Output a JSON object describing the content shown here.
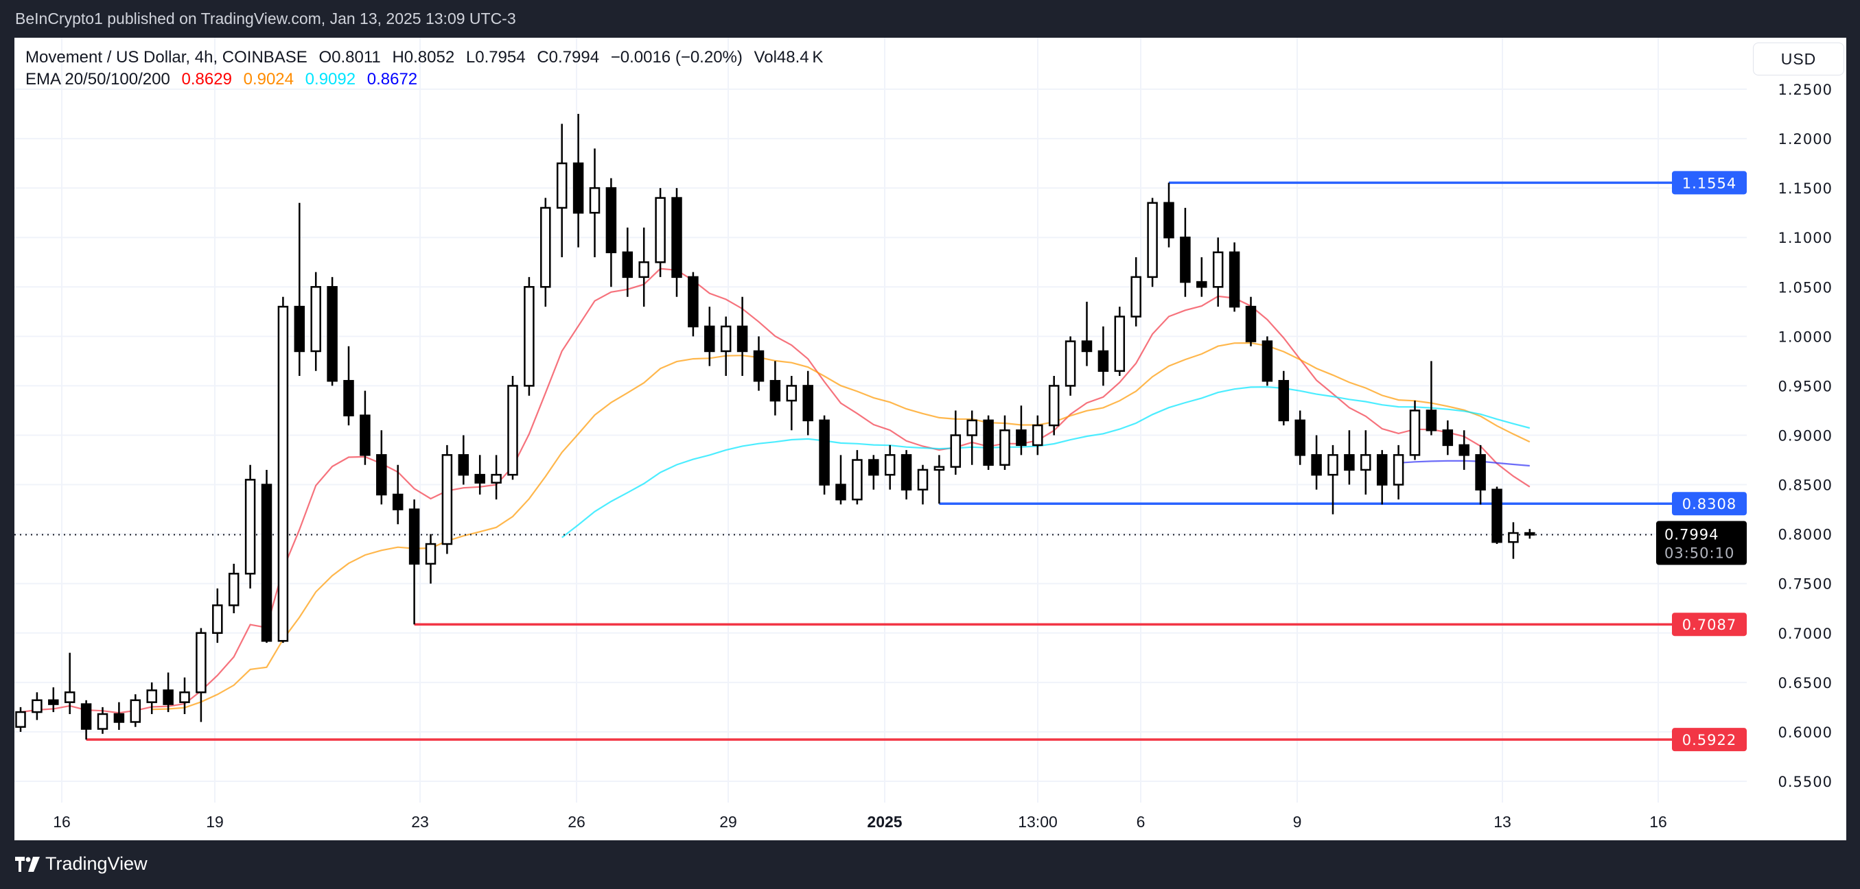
{
  "publish_line": "BeInCrypto1 published on TradingView.com, Jan 13, 2025 13:09 UTC-3",
  "legend": {
    "symbol": "Movement / US Dollar, 4h, COINBASE",
    "open": "O0.8011",
    "high": "H0.8052",
    "low": "L0.7954",
    "close": "C0.7994",
    "change": "−0.0016 (−0.20%)",
    "volume": "Vol48.4 K",
    "ema_label": "EMA 20/50/100/200",
    "ema20": "0.8629",
    "ema50": "0.9024",
    "ema100": "0.9092",
    "ema200": "0.8672"
  },
  "currency_button": "USD",
  "footer": {
    "logo_text": "TradingView"
  },
  "colors": {
    "ema20": "#f23645",
    "ema50": "#ff9800",
    "ema100": "#00e5ff",
    "ema200": "#2e2ef5",
    "support_resistance_blue": "#2962ff",
    "support_red": "#f23645",
    "background": "#1e222d"
  },
  "chart_data": {
    "type": "candlestick",
    "ylim": [
      0.53,
      1.265
    ],
    "grid": true,
    "y_ticks": [
      "1.2500",
      "1.2000",
      "1.1500",
      "1.1000",
      "1.0500",
      "1.0000",
      "0.9500",
      "0.9000",
      "0.8500",
      "0.8000",
      "0.7500",
      "0.7000",
      "0.6500",
      "0.6000",
      "0.5500"
    ],
    "x_ticks": [
      {
        "label": "16",
        "bold": false
      },
      {
        "label": "19",
        "bold": false
      },
      {
        "label": "23",
        "bold": false
      },
      {
        "label": "26",
        "bold": false
      },
      {
        "label": "29",
        "bold": false
      },
      {
        "label": "2025",
        "bold": true
      },
      {
        "label": "13:00",
        "bold": false
      },
      {
        "label": "6",
        "bold": false
      },
      {
        "label": "9",
        "bold": false
      },
      {
        "label": "13",
        "bold": false
      },
      {
        "label": "16",
        "bold": false
      }
    ],
    "candles": [
      [
        0.605,
        0.625,
        0.6,
        0.62
      ],
      [
        0.62,
        0.64,
        0.612,
        0.632
      ],
      [
        0.632,
        0.645,
        0.62,
        0.628
      ],
      [
        0.63,
        0.68,
        0.618,
        0.64
      ],
      [
        0.628,
        0.632,
        0.5922,
        0.603
      ],
      [
        0.603,
        0.625,
        0.598,
        0.618
      ],
      [
        0.618,
        0.63,
        0.602,
        0.61
      ],
      [
        0.61,
        0.638,
        0.605,
        0.632
      ],
      [
        0.63,
        0.65,
        0.618,
        0.642
      ],
      [
        0.642,
        0.66,
        0.62,
        0.628
      ],
      [
        0.63,
        0.655,
        0.618,
        0.64
      ],
      [
        0.64,
        0.705,
        0.61,
        0.7
      ],
      [
        0.7,
        0.745,
        0.69,
        0.728
      ],
      [
        0.728,
        0.77,
        0.72,
        0.76
      ],
      [
        0.76,
        0.87,
        0.745,
        0.855
      ],
      [
        0.85,
        0.865,
        0.69,
        0.692
      ],
      [
        0.692,
        1.04,
        0.69,
        1.03
      ],
      [
        1.03,
        1.135,
        0.96,
        0.985
      ],
      [
        0.985,
        1.065,
        0.965,
        1.05
      ],
      [
        1.05,
        1.06,
        0.95,
        0.955
      ],
      [
        0.955,
        0.99,
        0.91,
        0.92
      ],
      [
        0.92,
        0.945,
        0.87,
        0.88
      ],
      [
        0.88,
        0.905,
        0.83,
        0.84
      ],
      [
        0.84,
        0.87,
        0.81,
        0.825
      ],
      [
        0.825,
        0.835,
        0.7087,
        0.77
      ],
      [
        0.77,
        0.8,
        0.75,
        0.79
      ],
      [
        0.79,
        0.89,
        0.78,
        0.88
      ],
      [
        0.88,
        0.9,
        0.85,
        0.86
      ],
      [
        0.86,
        0.88,
        0.84,
        0.852
      ],
      [
        0.852,
        0.88,
        0.835,
        0.86
      ],
      [
        0.86,
        0.96,
        0.855,
        0.95
      ],
      [
        0.95,
        1.06,
        0.94,
        1.05
      ],
      [
        1.05,
        1.14,
        1.03,
        1.13
      ],
      [
        1.13,
        1.215,
        1.08,
        1.175
      ],
      [
        1.175,
        1.225,
        1.09,
        1.125
      ],
      [
        1.125,
        1.19,
        1.08,
        1.15
      ],
      [
        1.15,
        1.16,
        1.05,
        1.085
      ],
      [
        1.085,
        1.11,
        1.04,
        1.06
      ],
      [
        1.06,
        1.11,
        1.03,
        1.075
      ],
      [
        1.075,
        1.15,
        1.06,
        1.14
      ],
      [
        1.14,
        1.15,
        1.04,
        1.06
      ],
      [
        1.06,
        1.065,
        1.0,
        1.01
      ],
      [
        1.01,
        1.03,
        0.97,
        0.985
      ],
      [
        0.985,
        1.02,
        0.96,
        1.01
      ],
      [
        1.01,
        1.04,
        0.96,
        0.985
      ],
      [
        0.985,
        1.0,
        0.945,
        0.955
      ],
      [
        0.955,
        0.975,
        0.92,
        0.935
      ],
      [
        0.935,
        0.96,
        0.905,
        0.95
      ],
      [
        0.95,
        0.965,
        0.9,
        0.915
      ],
      [
        0.915,
        0.92,
        0.84,
        0.85
      ],
      [
        0.85,
        0.88,
        0.83,
        0.835
      ],
      [
        0.835,
        0.885,
        0.83,
        0.875
      ],
      [
        0.875,
        0.88,
        0.845,
        0.86
      ],
      [
        0.86,
        0.89,
        0.845,
        0.88
      ],
      [
        0.88,
        0.885,
        0.835,
        0.845
      ],
      [
        0.845,
        0.87,
        0.83,
        0.865
      ],
      [
        0.865,
        0.88,
        0.8308,
        0.868
      ],
      [
        0.868,
        0.925,
        0.86,
        0.9
      ],
      [
        0.9,
        0.925,
        0.87,
        0.915
      ],
      [
        0.915,
        0.92,
        0.865,
        0.87
      ],
      [
        0.87,
        0.92,
        0.865,
        0.905
      ],
      [
        0.905,
        0.93,
        0.88,
        0.89
      ],
      [
        0.89,
        0.92,
        0.88,
        0.91
      ],
      [
        0.91,
        0.96,
        0.9,
        0.95
      ],
      [
        0.95,
        1.0,
        0.94,
        0.995
      ],
      [
        0.995,
        1.035,
        0.97,
        0.985
      ],
      [
        0.985,
        1.01,
        0.95,
        0.965
      ],
      [
        0.965,
        1.03,
        0.96,
        1.02
      ],
      [
        1.02,
        1.08,
        1.01,
        1.06
      ],
      [
        1.06,
        1.14,
        1.05,
        1.135
      ],
      [
        1.135,
        1.1554,
        1.09,
        1.1
      ],
      [
        1.1,
        1.13,
        1.04,
        1.055
      ],
      [
        1.055,
        1.08,
        1.04,
        1.05
      ],
      [
        1.05,
        1.1,
        1.03,
        1.085
      ],
      [
        1.085,
        1.095,
        1.025,
        1.03
      ],
      [
        1.03,
        1.04,
        0.99,
        0.995
      ],
      [
        0.995,
        1.0,
        0.95,
        0.955
      ],
      [
        0.955,
        0.965,
        0.91,
        0.915
      ],
      [
        0.915,
        0.925,
        0.87,
        0.88
      ],
      [
        0.88,
        0.9,
        0.845,
        0.86
      ],
      [
        0.86,
        0.89,
        0.82,
        0.88
      ],
      [
        0.88,
        0.905,
        0.85,
        0.865
      ],
      [
        0.865,
        0.905,
        0.84,
        0.88
      ],
      [
        0.88,
        0.885,
        0.83,
        0.85
      ],
      [
        0.85,
        0.89,
        0.835,
        0.88
      ],
      [
        0.88,
        0.935,
        0.875,
        0.925
      ],
      [
        0.925,
        0.975,
        0.9,
        0.905
      ],
      [
        0.905,
        0.915,
        0.88,
        0.89
      ],
      [
        0.89,
        0.905,
        0.865,
        0.88
      ],
      [
        0.88,
        0.89,
        0.83,
        0.845
      ],
      [
        0.845,
        0.848,
        0.79,
        0.792
      ],
      [
        0.792,
        0.812,
        0.775,
        0.8011
      ],
      [
        0.8011,
        0.8052,
        0.7954,
        0.7994
      ]
    ],
    "levels": [
      {
        "price": 1.1554,
        "label": "1.1554",
        "color": "#2962ff",
        "start_candle": 70
      },
      {
        "price": 0.8308,
        "label": "0.8308",
        "color": "#2962ff",
        "start_candle": 56
      },
      {
        "price": 0.7087,
        "label": "0.7087",
        "color": "#f23645",
        "start_candle": 24
      },
      {
        "price": 0.5922,
        "label": "0.5922",
        "color": "#f23645",
        "start_candle": 4
      }
    ],
    "last_price": {
      "price": 0.7994,
      "label": "0.7994",
      "countdown": "03:50:10"
    }
  }
}
